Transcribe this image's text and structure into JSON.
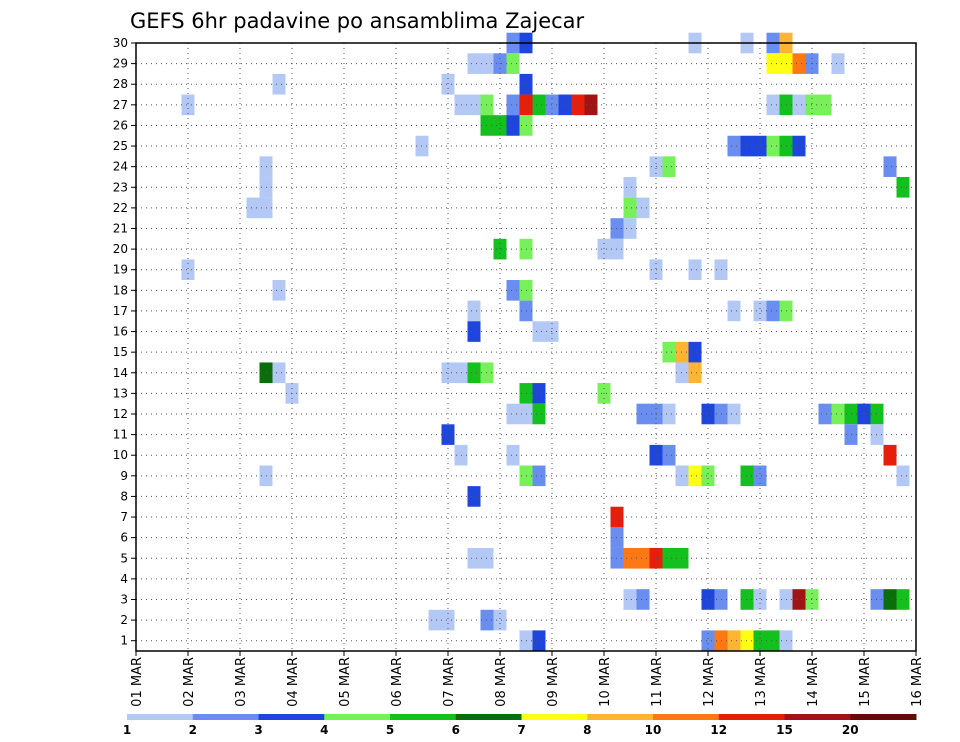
{
  "chart_data": {
    "type": "heatmap",
    "title": "GEFS 6hr padavine po ansamblima Zajecar",
    "x_tick_labels": [
      "01 MAR",
      "02 MAR",
      "03 MAR",
      "04 MAR",
      "05 MAR",
      "06 MAR",
      "07 MAR",
      "08 MAR",
      "09 MAR",
      "10 MAR",
      "11 MAR",
      "12 MAR",
      "13 MAR",
      "14 MAR",
      "15 MAR",
      "16 MAR"
    ],
    "y_tick_labels": [
      "1",
      "2",
      "3",
      "4",
      "5",
      "6",
      "7",
      "8",
      "9",
      "10",
      "11",
      "12",
      "13",
      "14",
      "15",
      "16",
      "17",
      "18",
      "19",
      "20",
      "21",
      "22",
      "23",
      "24",
      "25",
      "26",
      "27",
      "28",
      "29",
      "30"
    ],
    "xlim": [
      0,
      15
    ],
    "ylim": [
      0.5,
      30
    ],
    "grid": true,
    "legend_position": "bottom",
    "legend": {
      "colors": [
        "#b4c8f5",
        "#6a8ef0",
        "#1e46dc",
        "#78f05a",
        "#14c01e",
        "#0a6e0a",
        "#ffff14",
        "#ffb432",
        "#ff7814",
        "#e61e0a",
        "#a01414",
        "#640a0a"
      ],
      "labels": [
        "1",
        "2",
        "3",
        "4",
        "5",
        "6",
        "7",
        "8",
        "10",
        "12",
        "15",
        "20"
      ]
    },
    "cells": [
      [
        7.25,
        30,
        1
      ],
      [
        7.5,
        30,
        2
      ],
      [
        10.75,
        30,
        0
      ],
      [
        11.75,
        30,
        0
      ],
      [
        12.25,
        30,
        1
      ],
      [
        12.5,
        30,
        7
      ],
      [
        6.5,
        29,
        0
      ],
      [
        6.75,
        29,
        0
      ],
      [
        7,
        29,
        1
      ],
      [
        7.25,
        29,
        3
      ],
      [
        12.25,
        29,
        6
      ],
      [
        12.5,
        29,
        6
      ],
      [
        12.75,
        29,
        8
      ],
      [
        13,
        29,
        1
      ],
      [
        13.5,
        29,
        0
      ],
      [
        2.75,
        28,
        0
      ],
      [
        6,
        28,
        0
      ],
      [
        7.5,
        28,
        2
      ],
      [
        1,
        27,
        0
      ],
      [
        6.25,
        27,
        0
      ],
      [
        6.5,
        27,
        0
      ],
      [
        6.75,
        27,
        3
      ],
      [
        7.25,
        27,
        1
      ],
      [
        7.5,
        27,
        9
      ],
      [
        7.75,
        27,
        4
      ],
      [
        8,
        27,
        1
      ],
      [
        8.25,
        27,
        2
      ],
      [
        8.5,
        27,
        9
      ],
      [
        8.75,
        27,
        10
      ],
      [
        12.25,
        27,
        0
      ],
      [
        12.5,
        27,
        4
      ],
      [
        12.75,
        27,
        0
      ],
      [
        13,
        27,
        3
      ],
      [
        13.25,
        27,
        3
      ],
      [
        6.75,
        26,
        4
      ],
      [
        7,
        26,
        4
      ],
      [
        7.25,
        26,
        2
      ],
      [
        7.5,
        26,
        3
      ],
      [
        5.5,
        25,
        0
      ],
      [
        11.5,
        25,
        1
      ],
      [
        11.75,
        25,
        2
      ],
      [
        12,
        25,
        2
      ],
      [
        12.25,
        25,
        3
      ],
      [
        12.5,
        25,
        4
      ],
      [
        12.75,
        25,
        2
      ],
      [
        2.5,
        24,
        0
      ],
      [
        10,
        24,
        0
      ],
      [
        10.25,
        24,
        3
      ],
      [
        14.5,
        24,
        1
      ],
      [
        2.5,
        23,
        0
      ],
      [
        9.5,
        23,
        0
      ],
      [
        14.75,
        23,
        4
      ],
      [
        2.25,
        22,
        0
      ],
      [
        2.5,
        22,
        0
      ],
      [
        9.5,
        22,
        3
      ],
      [
        9.75,
        22,
        0
      ],
      [
        9.25,
        21,
        1
      ],
      [
        9.5,
        21,
        0
      ],
      [
        7,
        20,
        4
      ],
      [
        7.5,
        20,
        3
      ],
      [
        9,
        20,
        0
      ],
      [
        9.25,
        20,
        0
      ],
      [
        1,
        19,
        0
      ],
      [
        10,
        19,
        0
      ],
      [
        10.75,
        19,
        0
      ],
      [
        11.25,
        19,
        0
      ],
      [
        2.75,
        18,
        0
      ],
      [
        7.25,
        18,
        1
      ],
      [
        7.5,
        18,
        3
      ],
      [
        6.5,
        17,
        0
      ],
      [
        7.5,
        17,
        1
      ],
      [
        11.5,
        17,
        0
      ],
      [
        12,
        17,
        0
      ],
      [
        12.25,
        17,
        1
      ],
      [
        12.5,
        17,
        3
      ],
      [
        6.5,
        16,
        2
      ],
      [
        7.75,
        16,
        0
      ],
      [
        8,
        16,
        0
      ],
      [
        10.25,
        15,
        3
      ],
      [
        10.5,
        15,
        7
      ],
      [
        10.75,
        15,
        2
      ],
      [
        2.5,
        14,
        5
      ],
      [
        2.75,
        14,
        0
      ],
      [
        6,
        14,
        0
      ],
      [
        6.25,
        14,
        0
      ],
      [
        6.5,
        14,
        4
      ],
      [
        6.75,
        14,
        3
      ],
      [
        10.5,
        14,
        0
      ],
      [
        10.75,
        14,
        7
      ],
      [
        3,
        13,
        0
      ],
      [
        7.5,
        13,
        4
      ],
      [
        7.75,
        13,
        2
      ],
      [
        9,
        13,
        3
      ],
      [
        7.25,
        12,
        0
      ],
      [
        7.5,
        12,
        0
      ],
      [
        7.75,
        12,
        4
      ],
      [
        9.75,
        12,
        1
      ],
      [
        10,
        12,
        1
      ],
      [
        10.25,
        12,
        0
      ],
      [
        11,
        12,
        2
      ],
      [
        11.25,
        12,
        1
      ],
      [
        11.5,
        12,
        0
      ],
      [
        13.25,
        12,
        1
      ],
      [
        13.5,
        12,
        3
      ],
      [
        13.75,
        12,
        4
      ],
      [
        14,
        12,
        2
      ],
      [
        14.25,
        12,
        4
      ],
      [
        6,
        11,
        2
      ],
      [
        13.75,
        11,
        1
      ],
      [
        14.25,
        11,
        0
      ],
      [
        6.25,
        10,
        0
      ],
      [
        7.25,
        10,
        0
      ],
      [
        10,
        10,
        2
      ],
      [
        10.25,
        10,
        1
      ],
      [
        14.5,
        10,
        9
      ],
      [
        2.5,
        9,
        0
      ],
      [
        7.5,
        9,
        3
      ],
      [
        7.75,
        9,
        1
      ],
      [
        10.5,
        9,
        0
      ],
      [
        10.75,
        9,
        6
      ],
      [
        11,
        9,
        3
      ],
      [
        11.75,
        9,
        4
      ],
      [
        12,
        9,
        1
      ],
      [
        14.75,
        9,
        0
      ],
      [
        6.5,
        8,
        2
      ],
      [
        9.25,
        7,
        9
      ],
      [
        9.25,
        6,
        1
      ],
      [
        6.5,
        5,
        0
      ],
      [
        6.75,
        5,
        0
      ],
      [
        9.25,
        5,
        1
      ],
      [
        9.5,
        5,
        8
      ],
      [
        9.75,
        5,
        8
      ],
      [
        10,
        5,
        9
      ],
      [
        10.25,
        5,
        4
      ],
      [
        10.5,
        5,
        4
      ],
      [
        9.5,
        3,
        0
      ],
      [
        9.75,
        3,
        1
      ],
      [
        11,
        3,
        2
      ],
      [
        11.25,
        3,
        1
      ],
      [
        11.75,
        3,
        4
      ],
      [
        12,
        3,
        0
      ],
      [
        12.5,
        3,
        0
      ],
      [
        12.75,
        3,
        10
      ],
      [
        13,
        3,
        3
      ],
      [
        14.25,
        3,
        1
      ],
      [
        14.5,
        3,
        5
      ],
      [
        14.75,
        3,
        4
      ],
      [
        5.75,
        2,
        0
      ],
      [
        6,
        2,
        0
      ],
      [
        6.75,
        2,
        1
      ],
      [
        7,
        2,
        0
      ],
      [
        7.5,
        1,
        0
      ],
      [
        7.75,
        1,
        2
      ],
      [
        11,
        1,
        1
      ],
      [
        11.25,
        1,
        8
      ],
      [
        11.5,
        1,
        7
      ],
      [
        11.75,
        1,
        6
      ],
      [
        12,
        1,
        4
      ],
      [
        12.25,
        1,
        4
      ],
      [
        12.5,
        1,
        0
      ]
    ]
  }
}
